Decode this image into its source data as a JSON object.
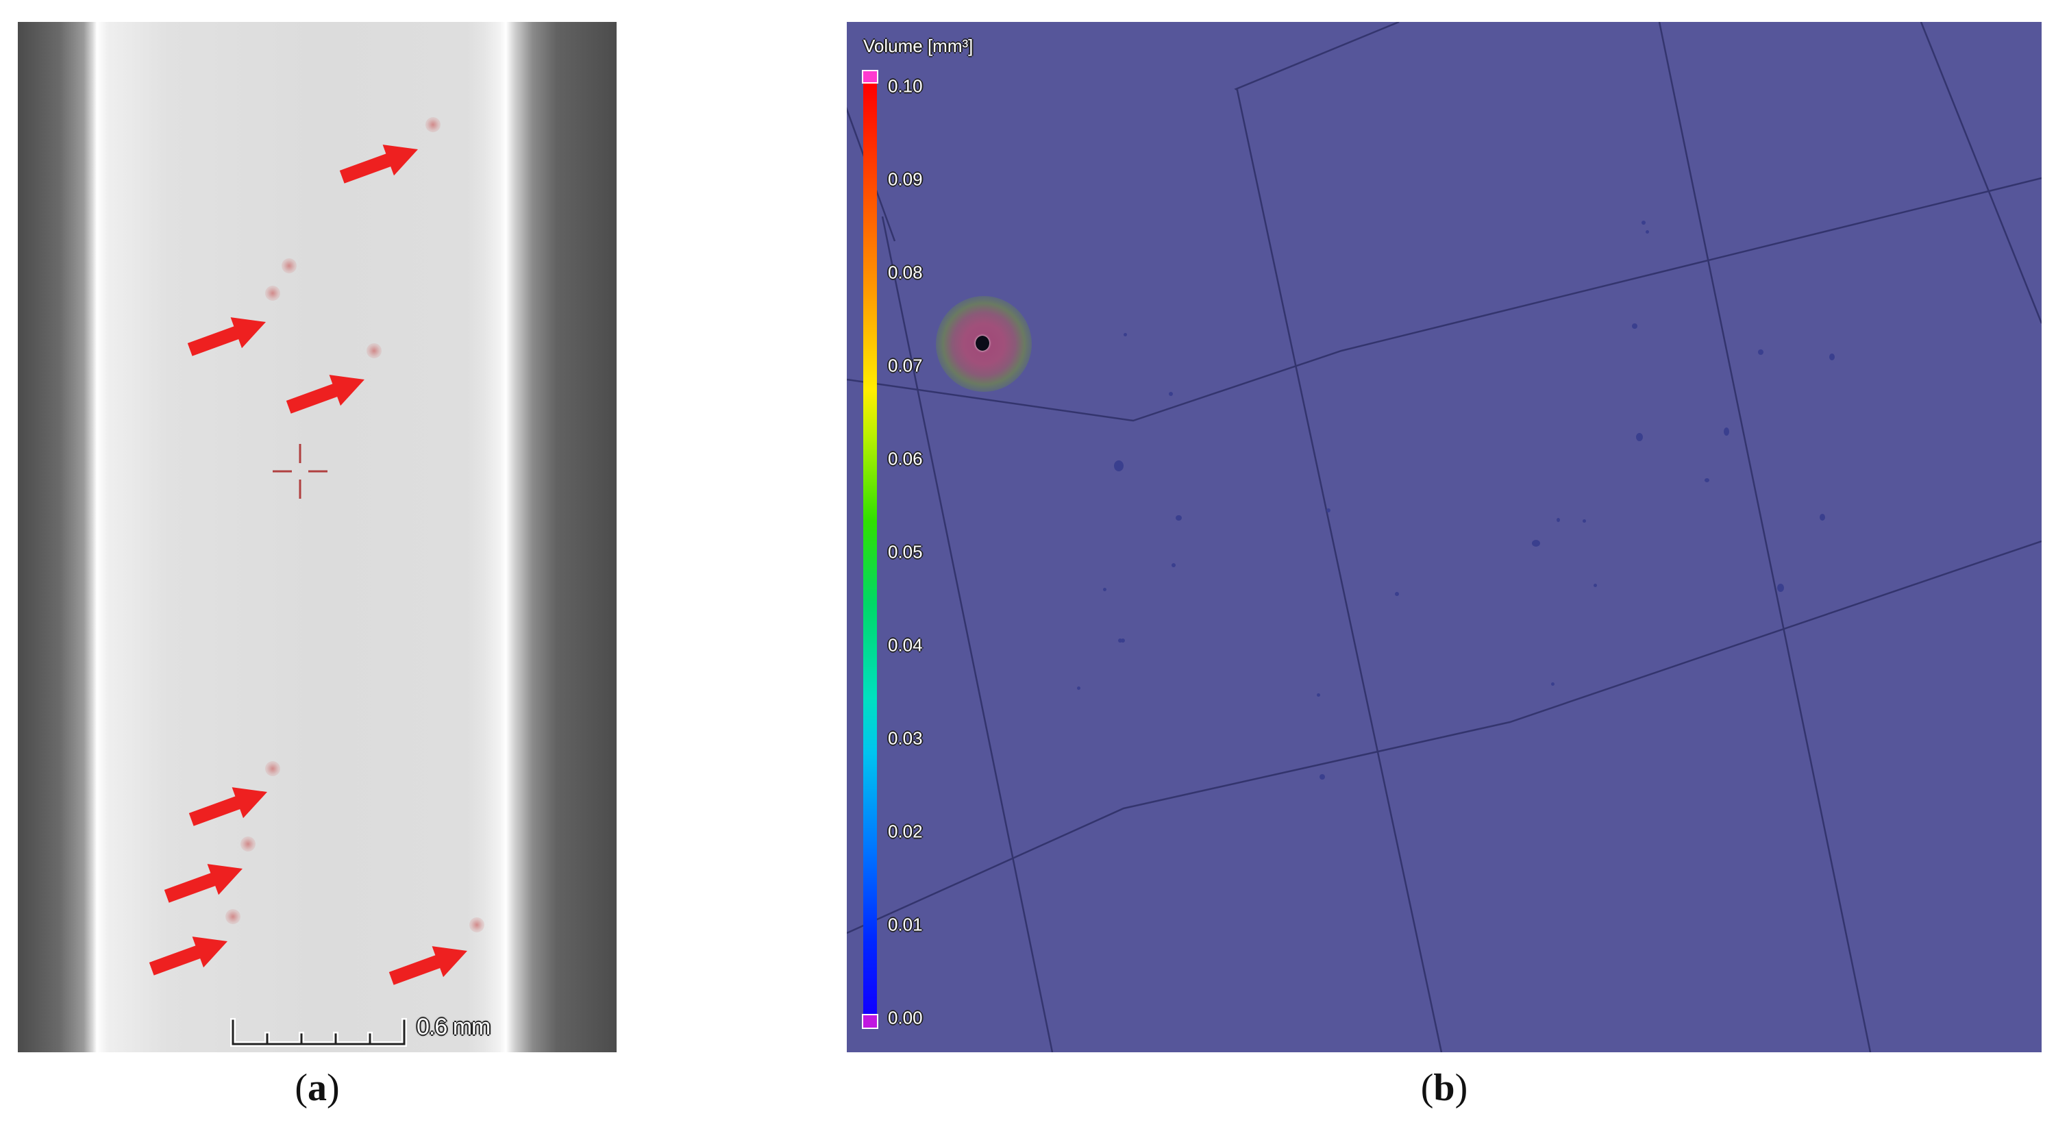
{
  "panel_a": {
    "scale_bar_label": "0.6 mm",
    "arrow_color": "#ee2020",
    "defect_count": 7,
    "caption": "(a)"
  },
  "panel_b": {
    "legend": {
      "title": "Volume [mm³]",
      "ticks": [
        "0.10",
        "0.09",
        "0.08",
        "0.07",
        "0.06",
        "0.05",
        "0.04",
        "0.03",
        "0.02",
        "0.01",
        "0.00"
      ]
    },
    "background_color": "#56569a",
    "caption": "(b)"
  }
}
